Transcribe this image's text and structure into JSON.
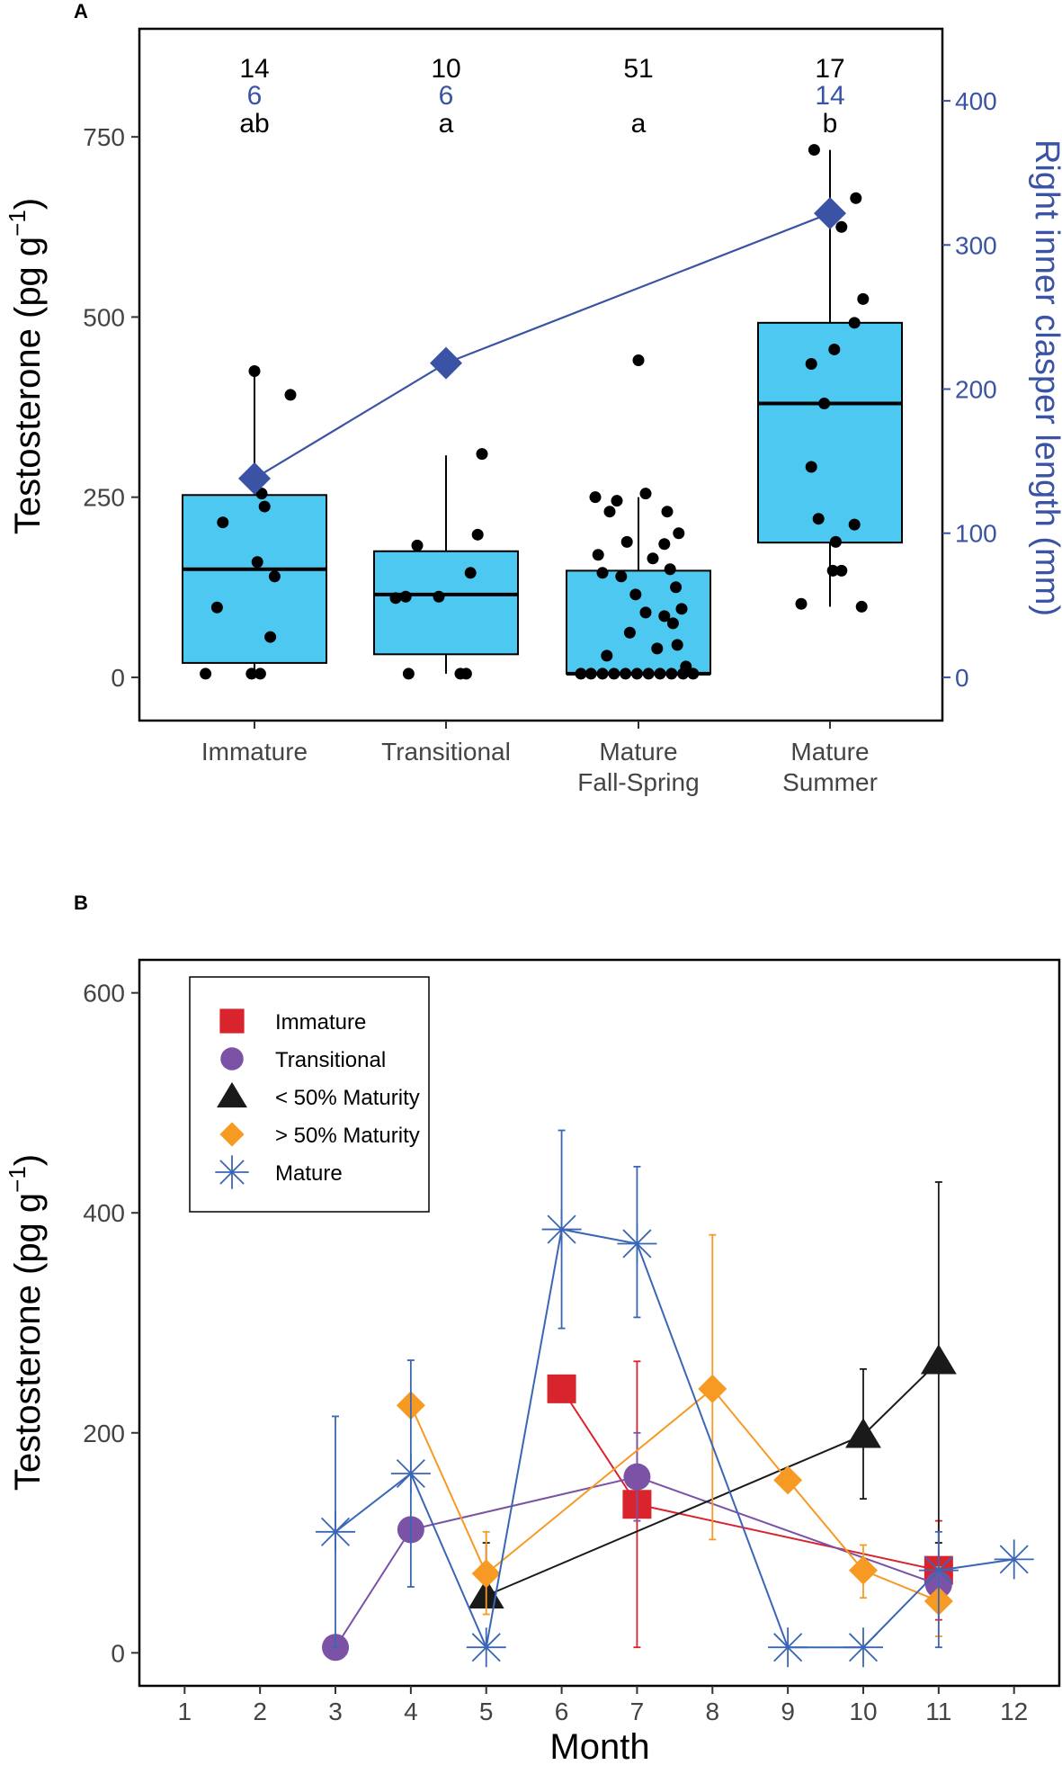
{
  "chart_data": [
    {
      "panel": "A",
      "type": "box",
      "ylabel_main": "Testosterone (pg g",
      "ylabel_sup": "−1",
      "ylabel_close": ")",
      "y2label": "Right inner clasper length (mm)",
      "ylim": [
        -60,
        900
      ],
      "yticks": [
        0,
        250,
        500,
        750
      ],
      "y2lim": [
        -30,
        450
      ],
      "y2ticks": [
        0,
        100,
        200,
        300,
        400
      ],
      "colors": {
        "box": "#4dc8f0",
        "line": "#3a53a4",
        "points": "#000000"
      },
      "categories": [
        {
          "label1": "Immature",
          "label2": "",
          "n_testosterone": "14",
          "n_clasper": "6",
          "letter": "ab",
          "box": {
            "q1": 20,
            "median": 150,
            "q3": 253,
            "whisker_low": 5,
            "whisker_high": 425
          },
          "clasper_mean": 138,
          "points": [
            [
              -0.34,
              5
            ],
            [
              -0.02,
              5
            ],
            [
              0.04,
              5
            ],
            [
              -0.26,
              97
            ],
            [
              -0.22,
              215
            ],
            [
              0.07,
              237
            ],
            [
              0.05,
              255
            ],
            [
              0.02,
              160
            ],
            [
              0.14,
              140
            ],
            [
              0.11,
              56
            ],
            [
              0.25,
              392
            ],
            [
              0.0,
              425
            ]
          ]
        },
        {
          "label1": "Transitional",
          "label2": "",
          "n_testosterone": "10",
          "n_clasper": "6",
          "letter": "a",
          "box": {
            "q1": 32,
            "median": 115,
            "q3": 175,
            "whisker_low": 5,
            "whisker_high": 308
          },
          "clasper_mean": 218,
          "points": [
            [
              -0.26,
              5
            ],
            [
              0.1,
              5
            ],
            [
              0.14,
              5
            ],
            [
              -0.35,
              110
            ],
            [
              -0.28,
              112
            ],
            [
              -0.2,
              183
            ],
            [
              -0.05,
              112
            ],
            [
              0.17,
              145
            ],
            [
              0.22,
              198
            ],
            [
              0.25,
              310
            ]
          ]
        },
        {
          "label1": "Mature",
          "label2": "Fall-Spring",
          "n_testosterone": "51",
          "n_clasper": "",
          "letter": "a",
          "box": {
            "q1": 5,
            "median": 5,
            "q3": 148,
            "whisker_low": 5,
            "whisker_high": 250
          },
          "clasper_mean": null,
          "points": [
            [
              -0.4,
              5
            ],
            [
              -0.33,
              5
            ],
            [
              -0.25,
              5
            ],
            [
              -0.17,
              5
            ],
            [
              -0.09,
              5
            ],
            [
              -0.01,
              5
            ],
            [
              0.07,
              5
            ],
            [
              0.15,
              5
            ],
            [
              0.23,
              5
            ],
            [
              0.31,
              5
            ],
            [
              0.38,
              5
            ],
            [
              -0.3,
              250
            ],
            [
              -0.15,
              245
            ],
            [
              0.0,
              440
            ],
            [
              0.05,
              255
            ],
            [
              0.2,
              230
            ],
            [
              -0.2,
              230
            ],
            [
              0.28,
              200
            ],
            [
              -0.08,
              188
            ],
            [
              0.18,
              185
            ],
            [
              -0.28,
              170
            ],
            [
              0.1,
              165
            ],
            [
              -0.25,
              145
            ],
            [
              0.22,
              150
            ],
            [
              -0.12,
              140
            ],
            [
              0.26,
              125
            ],
            [
              -0.02,
              115
            ],
            [
              0.3,
              95
            ],
            [
              0.05,
              90
            ],
            [
              0.18,
              85
            ],
            [
              0.24,
              75
            ],
            [
              -0.06,
              62
            ],
            [
              0.27,
              45
            ],
            [
              0.13,
              40
            ],
            [
              -0.22,
              30
            ],
            [
              0.33,
              15
            ]
          ]
        },
        {
          "label1": "Mature",
          "label2": "Summer",
          "n_testosterone": "17",
          "n_clasper": "14",
          "letter": "b",
          "box": {
            "q1": 187,
            "median": 380,
            "q3": 492,
            "whisker_low": 98,
            "whisker_high": 732
          },
          "clasper_mean": 322,
          "points": [
            [
              -0.11,
              732
            ],
            [
              0.18,
              665
            ],
            [
              0.08,
              625
            ],
            [
              0.23,
              525
            ],
            [
              -0.2,
              102
            ],
            [
              0.22,
              98
            ],
            [
              0.02,
              148
            ],
            [
              0.17,
              212
            ],
            [
              0.17,
              492
            ],
            [
              0.03,
              455
            ],
            [
              -0.13,
              435
            ],
            [
              -0.04,
              380
            ],
            [
              -0.13,
              292
            ],
            [
              -0.08,
              220
            ],
            [
              0.04,
              188
            ],
            [
              0.08,
              148
            ]
          ]
        }
      ]
    },
    {
      "panel": "B",
      "type": "line",
      "xlabel": "Month",
      "ylabel_main": "Testosterone (pg g",
      "ylabel_sup": "−1",
      "ylabel_close": ")",
      "xlim": [
        0.4,
        12.6
      ],
      "ylim": [
        -30,
        630
      ],
      "xticks": [
        1,
        2,
        3,
        4,
        5,
        6,
        7,
        8,
        9,
        10,
        11,
        12
      ],
      "yticks": [
        0,
        200,
        400,
        600
      ],
      "legend_position": "top-left",
      "series": [
        {
          "name": "Immature",
          "marker": "square",
          "color": "#d9232d",
          "points": [
            {
              "x": 6,
              "y": 240,
              "lo": 230,
              "hi": 250
            },
            {
              "x": 7,
              "y": 135,
              "lo": 5,
              "hi": 265
            },
            {
              "x": 11,
              "y": 75,
              "lo": 30,
              "hi": 120
            }
          ]
        },
        {
          "name": "Transitional",
          "marker": "circle",
          "color": "#7b52a5",
          "points": [
            {
              "x": 3,
              "y": 5,
              "lo": null,
              "hi": null
            },
            {
              "x": 4,
              "y": 112,
              "lo": null,
              "hi": null
            },
            {
              "x": 7,
              "y": 160,
              "lo": 120,
              "hi": 200
            },
            {
              "x": 11,
              "y": 62,
              "lo": null,
              "hi": null
            }
          ]
        },
        {
          "name": "< 50% Maturity",
          "marker": "triangle",
          "color": "#1a1a1a",
          "points": [
            {
              "x": 5,
              "y": 52,
              "lo": null,
              "hi": 100
            },
            {
              "x": 10,
              "y": 198,
              "lo": 140,
              "hi": 258
            },
            {
              "x": 11,
              "y": 265,
              "lo": 100,
              "hi": 428
            }
          ]
        },
        {
          "name": "> 50% Maturity",
          "marker": "diamond",
          "color": "#f79a24",
          "points": [
            {
              "x": 4,
              "y": 225,
              "lo": null,
              "hi": null
            },
            {
              "x": 5,
              "y": 72,
              "lo": 35,
              "hi": 110
            },
            {
              "x": 8,
              "y": 240,
              "lo": 103,
              "hi": 380
            },
            {
              "x": 9,
              "y": 157,
              "lo": null,
              "hi": null
            },
            {
              "x": 10,
              "y": 75,
              "lo": 50,
              "hi": 98
            },
            {
              "x": 11,
              "y": 47,
              "lo": 15,
              "hi": 78
            }
          ]
        },
        {
          "name": "Mature",
          "marker": "asterisk",
          "color": "#3a66b5",
          "points": [
            {
              "x": 3,
              "y": 110,
              "lo": 5,
              "hi": 215
            },
            {
              "x": 4,
              "y": 163,
              "lo": 60,
              "hi": 266
            },
            {
              "x": 5,
              "y": 5,
              "lo": null,
              "hi": null
            },
            {
              "x": 6,
              "y": 385,
              "lo": 295,
              "hi": 475
            },
            {
              "x": 7,
              "y": 372,
              "lo": 305,
              "hi": 442
            },
            {
              "x": 9,
              "y": 5,
              "lo": null,
              "hi": null
            },
            {
              "x": 10,
              "y": 5,
              "lo": null,
              "hi": null
            },
            {
              "x": 11,
              "y": 75,
              "lo": 5,
              "hi": 110
            },
            {
              "x": 12,
              "y": 85,
              "lo": null,
              "hi": null
            }
          ]
        }
      ]
    }
  ]
}
